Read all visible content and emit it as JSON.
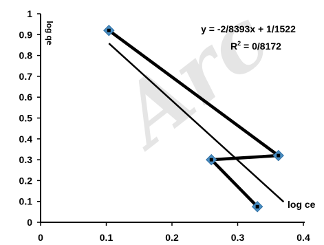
{
  "chart_data": {
    "type": "scatter",
    "xlabel": "log ce",
    "ylabel": "log qe",
    "xlim": [
      0,
      0.4
    ],
    "ylim": [
      0,
      1
    ],
    "x_ticks": [
      "0",
      "0.1",
      "0.2",
      "0.3",
      "0.4"
    ],
    "y_ticks": [
      "0",
      "0.1",
      "0.2",
      "0.3",
      "0.4",
      "0.5",
      "0.6",
      "0.7",
      "0.8",
      "0.9",
      "1"
    ],
    "series": [
      {
        "values": [
          {
            "x": 0.104,
            "y": 0.92
          },
          {
            "x": 0.362,
            "y": 0.32
          },
          {
            "x": 0.26,
            "y": 0.3
          },
          {
            "x": 0.33,
            "y": 0.075
          }
        ],
        "marker_color": "#4a8fc4",
        "line_color": "#000000"
      }
    ],
    "trendline": {
      "x": [
        0.104,
        0.37
      ],
      "y": [
        0.858,
        0.098
      ],
      "equation": "y = -2/8393x + 1/1522",
      "r2_label": "R",
      "r2_exp": "2",
      "r2_value": " = 0/8172"
    },
    "grid": false,
    "watermark": "Arc"
  }
}
